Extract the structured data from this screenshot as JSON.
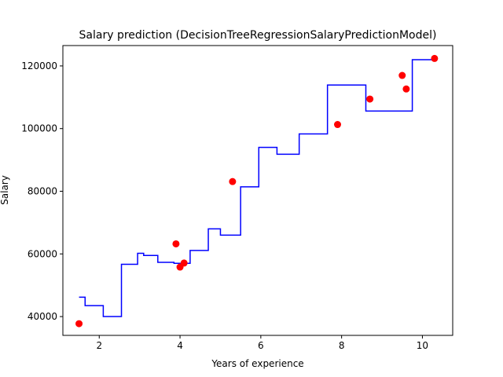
{
  "chart_data": {
    "type": "scatter",
    "title": "Salary prediction (DecisionTreeRegressionSalaryPredictionModel)",
    "xlabel": "Years of experience",
    "ylabel": "Salary",
    "xlim": [
      1.1,
      10.75
    ],
    "ylim": [
      34000,
      126500
    ],
    "xticks": [
      2,
      4,
      6,
      8,
      10
    ],
    "yticks": [
      40000,
      60000,
      80000,
      100000,
      120000
    ],
    "grid": false,
    "series": [
      {
        "kind": "scatter",
        "color": "#ff0000",
        "points": [
          {
            "x": 1.5,
            "y": 37731
          },
          {
            "x": 3.9,
            "y": 63218
          },
          {
            "x": 4.0,
            "y": 55794
          },
          {
            "x": 4.1,
            "y": 57081
          },
          {
            "x": 5.3,
            "y": 83088
          },
          {
            "x": 7.9,
            "y": 101302
          },
          {
            "x": 8.7,
            "y": 109431
          },
          {
            "x": 9.5,
            "y": 116969
          },
          {
            "x": 9.6,
            "y": 112635
          },
          {
            "x": 10.3,
            "y": 122391
          }
        ]
      },
      {
        "kind": "step-line",
        "color": "#0000ff",
        "points": [
          {
            "x": 1.5,
            "y": 46200
          },
          {
            "x": 1.65,
            "y": 46200
          },
          {
            "x": 1.65,
            "y": 43500
          },
          {
            "x": 2.1,
            "y": 43500
          },
          {
            "x": 2.1,
            "y": 40000
          },
          {
            "x": 2.55,
            "y": 40000
          },
          {
            "x": 2.55,
            "y": 56700
          },
          {
            "x": 2.95,
            "y": 56700
          },
          {
            "x": 2.95,
            "y": 60200
          },
          {
            "x": 3.1,
            "y": 60200
          },
          {
            "x": 3.1,
            "y": 59500
          },
          {
            "x": 3.45,
            "y": 59500
          },
          {
            "x": 3.45,
            "y": 57300
          },
          {
            "x": 3.85,
            "y": 57300
          },
          {
            "x": 3.85,
            "y": 57000
          },
          {
            "x": 4.25,
            "y": 57000
          },
          {
            "x": 4.25,
            "y": 61100
          },
          {
            "x": 4.7,
            "y": 61100
          },
          {
            "x": 4.7,
            "y": 68000
          },
          {
            "x": 5.0,
            "y": 68000
          },
          {
            "x": 5.0,
            "y": 66000
          },
          {
            "x": 5.5,
            "y": 66000
          },
          {
            "x": 5.5,
            "y": 81400
          },
          {
            "x": 5.95,
            "y": 81400
          },
          {
            "x": 5.95,
            "y": 94000
          },
          {
            "x": 6.4,
            "y": 94000
          },
          {
            "x": 6.4,
            "y": 91800
          },
          {
            "x": 6.95,
            "y": 91800
          },
          {
            "x": 6.95,
            "y": 98300
          },
          {
            "x": 7.65,
            "y": 98300
          },
          {
            "x": 7.65,
            "y": 113900
          },
          {
            "x": 8.6,
            "y": 113900
          },
          {
            "x": 8.6,
            "y": 105600
          },
          {
            "x": 9.75,
            "y": 105600
          },
          {
            "x": 9.75,
            "y": 122000
          },
          {
            "x": 10.3,
            "y": 122000
          }
        ]
      }
    ]
  }
}
